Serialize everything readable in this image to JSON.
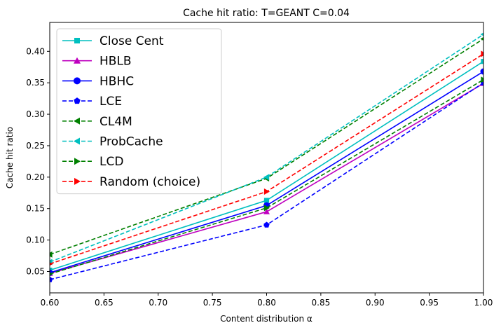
{
  "chart_data": {
    "type": "line",
    "title": "Cache hit ratio: T=GEANT C=0.04",
    "xlabel": "Content distribution α",
    "ylabel": "Cache hit ratio",
    "xlim": [
      0.6,
      1.0
    ],
    "ylim": [
      0.016,
      0.446
    ],
    "xticks": [
      "0.60",
      "0.65",
      "0.70",
      "0.75",
      "0.80",
      "0.85",
      "0.90",
      "0.95",
      "1.00"
    ],
    "yticks": [
      "0.05",
      "0.10",
      "0.15",
      "0.20",
      "0.25",
      "0.30",
      "0.35",
      "0.40"
    ],
    "grid": false,
    "legend_position": "top-left",
    "x": [
      0.6,
      0.8,
      1.0
    ],
    "series": [
      {
        "name": "Close Cent",
        "values": [
          0.052,
          0.163,
          0.384
        ],
        "color": "#00bfbf",
        "dash": "solid",
        "marker": "square"
      },
      {
        "name": "HBLB",
        "values": [
          0.047,
          0.145,
          0.349
        ],
        "color": "#bf00bf",
        "dash": "solid",
        "marker": "triangle-up"
      },
      {
        "name": "HBHC",
        "values": [
          0.048,
          0.155,
          0.368
        ],
        "color": "#0000ff",
        "dash": "solid",
        "marker": "circle"
      },
      {
        "name": "LCE",
        "values": [
          0.037,
          0.124,
          0.35
        ],
        "color": "#0000ff",
        "dash": "dashed",
        "marker": "pentagon"
      },
      {
        "name": "CL4M",
        "values": [
          0.077,
          0.198,
          0.42
        ],
        "color": "#008000",
        "dash": "dashed",
        "marker": "triangle-left"
      },
      {
        "name": "ProbCache",
        "values": [
          0.065,
          0.2,
          0.427
        ],
        "color": "#00bfbf",
        "dash": "dashed",
        "marker": "triangle-left"
      },
      {
        "name": "LCD",
        "values": [
          0.046,
          0.151,
          0.355
        ],
        "color": "#008000",
        "dash": "dashed",
        "marker": "triangle-right"
      },
      {
        "name": "Random (choice)",
        "values": [
          0.062,
          0.177,
          0.396
        ],
        "color": "#ff0000",
        "dash": "dashed",
        "marker": "triangle-right"
      }
    ]
  }
}
